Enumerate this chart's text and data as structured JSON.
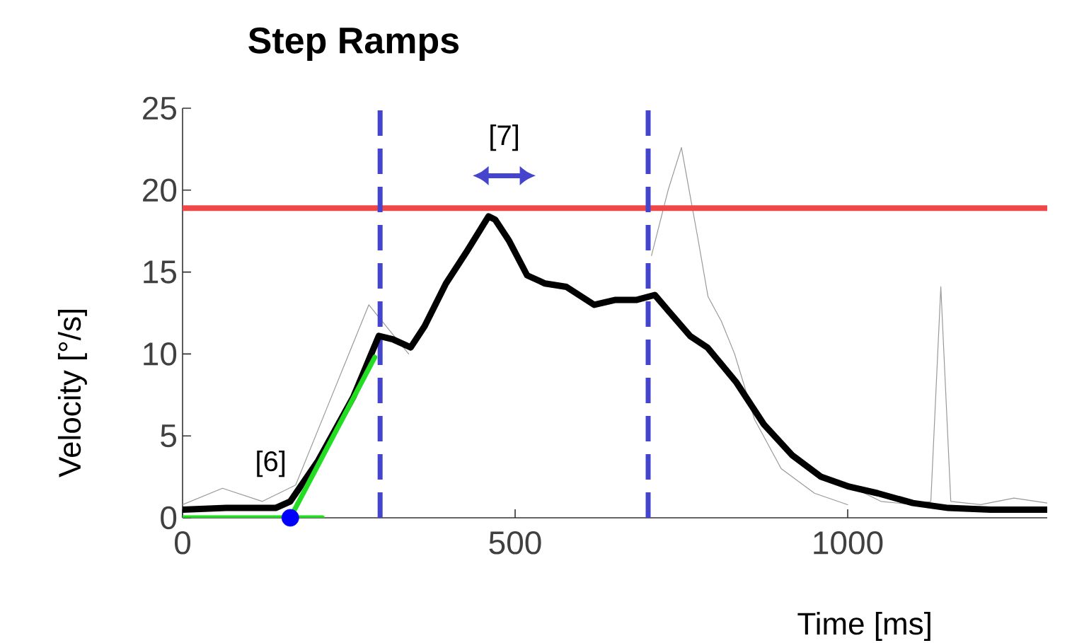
{
  "chart_data": {
    "type": "line",
    "title": "Step Ramps",
    "xlabel": "Time [ms]",
    "ylabel": "Velocity [°/s]",
    "xlim": [
      0,
      1300
    ],
    "ylim": [
      0,
      25
    ],
    "xticks": [
      0,
      500,
      1000
    ],
    "yticks": [
      0,
      5,
      10,
      15,
      20,
      25
    ],
    "grid": false,
    "marker": "none",
    "line_style": "solid",
    "series": [
      {
        "color": "#999999",
        "x": [
          0,
          60,
          120,
          170,
          220,
          260,
          280,
          300,
          340
        ],
        "values": [
          0.8,
          1.8,
          1.0,
          2.0,
          7,
          11,
          13,
          12,
          10
        ]
      },
      {
        "color": "#999999",
        "x": [
          705,
          730,
          750,
          775,
          790,
          810,
          830,
          860,
          900,
          950,
          1000
        ],
        "values": [
          16,
          20,
          22.6,
          17,
          13.5,
          12,
          10,
          6,
          3,
          1.5,
          0.8
        ]
      },
      {
        "color": "#999999",
        "x": [
          1000,
          1050,
          1100,
          1125,
          1140,
          1155,
          1200,
          1250,
          1300
        ],
        "values": [
          2.0,
          1.0,
          0.8,
          1.0,
          14.1,
          1.0,
          0.8,
          1.2,
          0.9
        ]
      },
      {
        "color": "#000000",
        "x": [
          0,
          66,
          140,
          162,
          204,
          257,
          295,
          316,
          343,
          364,
          396,
          428,
          460,
          470,
          491,
          518,
          545,
          577,
          619,
          651,
          683,
          710,
          731,
          763,
          789,
          832,
          874,
          917,
          960,
          1002,
          1045,
          1098,
          1151,
          1215,
          1300
        ],
        "values": [
          0.5,
          0.6,
          0.6,
          1.0,
          3.5,
          7.4,
          11.1,
          10.9,
          10.4,
          11.7,
          14.3,
          16.3,
          18.4,
          18.2,
          16.9,
          14.8,
          14.3,
          14.1,
          13.0,
          13.3,
          13.3,
          13.6,
          12.6,
          11.1,
          10.4,
          8.3,
          5.7,
          3.8,
          2.5,
          1.9,
          1.5,
          0.9,
          0.6,
          0.5,
          0.5
        ]
      },
      {
        "color": "#22dd22",
        "x": [
          0,
          210
        ],
        "values": [
          0,
          0
        ]
      },
      {
        "color": "#22dd22",
        "x": [
          162,
          289
        ],
        "values": [
          0,
          9.8
        ]
      },
      {
        "color": "#0000ff",
        "type": "scatter",
        "marker": "circle",
        "x": [
          162
        ],
        "values": [
          0
        ]
      }
    ],
    "ref_lines": [
      {
        "axis": "y",
        "value": 18.9,
        "color": "#f04848",
        "line_style": "solid"
      },
      {
        "axis": "x",
        "value": 297,
        "color": "#4444cc",
        "line_style": "dashed"
      },
      {
        "axis": "x",
        "value": 700,
        "color": "#4444cc",
        "line_style": "dashed"
      }
    ],
    "annotations": [
      "[6]",
      "[7]"
    ]
  }
}
